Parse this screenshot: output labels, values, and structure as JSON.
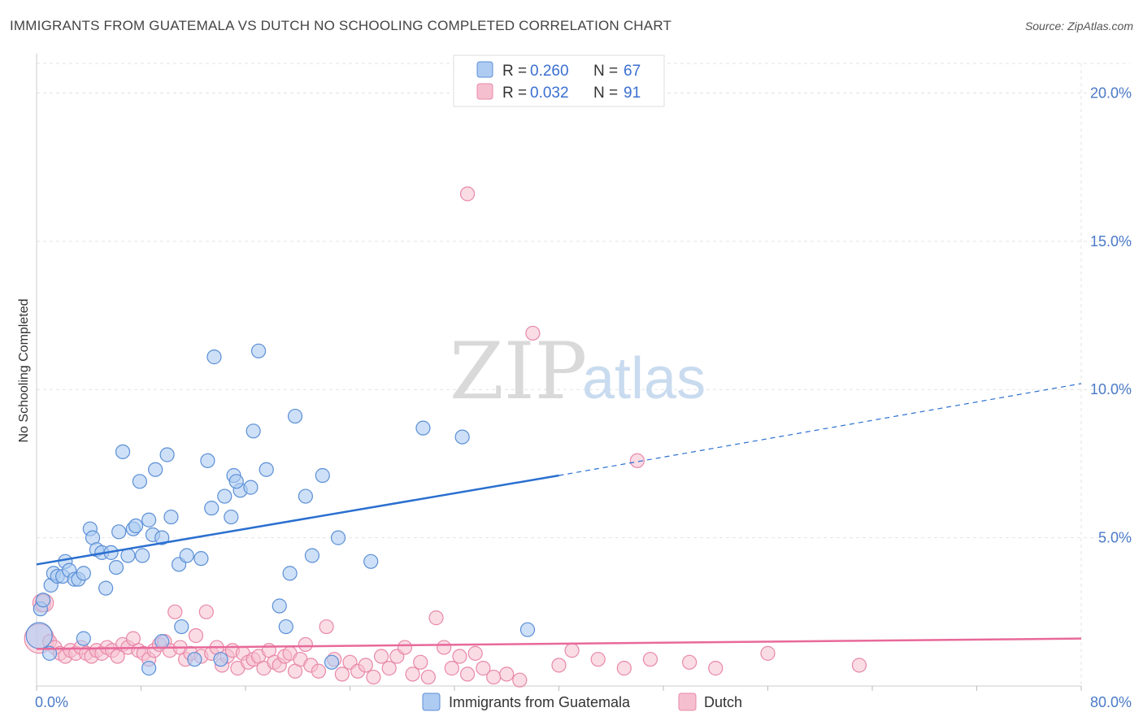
{
  "title": "IMMIGRANTS FROM GUATEMALA VS DUTCH NO SCHOOLING COMPLETED CORRELATION CHART",
  "source": "Source: ZipAtlas.com",
  "watermark": {
    "zip": "ZIP",
    "atlas": "atlas"
  },
  "colors": {
    "blue_fill": "#aecbf2",
    "blue_stroke": "#5b8fd6",
    "blue_line": "#2a6fd0",
    "pink_fill": "#f6bfd0",
    "pink_stroke": "#e888a8",
    "pink_line": "#e8699a",
    "tick_color": "#4a7ac8",
    "grid": "#e3e3e3"
  },
  "legend": {
    "rows": [
      {
        "r_label": "R =",
        "r_value": "0.260",
        "n_label": "N =",
        "n_value": "67"
      },
      {
        "r_label": "R =",
        "r_value": "0.032",
        "n_label": "N =",
        "n_value": "91"
      }
    ]
  },
  "bottom_legend": [
    "Immigrants from Guatemala",
    "Dutch"
  ],
  "chart_data": {
    "type": "scatter",
    "title": "IMMIGRANTS FROM GUATEMALA VS DUTCH NO SCHOOLING COMPLETED CORRELATION CHART",
    "xlabel": "",
    "ylabel": "No Schooling Completed",
    "xlim": [
      0,
      80
    ],
    "ylim": [
      0,
      21
    ],
    "x_tick_labels": [
      "0.0%",
      "80.0%"
    ],
    "y_ticks": [
      5,
      10,
      15,
      20
    ],
    "y_tick_labels": [
      "5.0%",
      "10.0%",
      "15.0%",
      "20.0%"
    ],
    "grid": true,
    "legend_position": "top-center",
    "series": [
      {
        "name": "Immigrants from Guatemala",
        "r": 0.26,
        "n": 67,
        "trend": {
          "x0": 0,
          "y0": 4.1,
          "x1": 40,
          "y1": 7.1,
          "dashed_to": 80,
          "dashed_y": 10.2
        },
        "points": [
          [
            0.3,
            2.6
          ],
          [
            0.5,
            2.9
          ],
          [
            1.1,
            3.4
          ],
          [
            1.3,
            3.8
          ],
          [
            1.6,
            3.7
          ],
          [
            2.0,
            3.7
          ],
          [
            2.2,
            4.2
          ],
          [
            2.5,
            3.9
          ],
          [
            2.9,
            3.6
          ],
          [
            3.2,
            3.6
          ],
          [
            3.6,
            3.8
          ],
          [
            4.1,
            5.3
          ],
          [
            4.3,
            5.0
          ],
          [
            4.6,
            4.6
          ],
          [
            5.0,
            4.5
          ],
          [
            5.3,
            3.3
          ],
          [
            5.7,
            4.5
          ],
          [
            6.1,
            4.0
          ],
          [
            6.3,
            5.2
          ],
          [
            6.6,
            7.9
          ],
          [
            7.0,
            4.4
          ],
          [
            7.4,
            5.3
          ],
          [
            7.6,
            5.4
          ],
          [
            7.9,
            6.9
          ],
          [
            8.1,
            4.4
          ],
          [
            8.6,
            5.6
          ],
          [
            8.9,
            5.1
          ],
          [
            9.1,
            7.3
          ],
          [
            9.6,
            5.0
          ],
          [
            10.0,
            7.8
          ],
          [
            10.3,
            5.7
          ],
          [
            10.9,
            4.1
          ],
          [
            11.1,
            2.0
          ],
          [
            11.5,
            4.4
          ],
          [
            12.6,
            4.3
          ],
          [
            13.1,
            7.6
          ],
          [
            13.4,
            6.0
          ],
          [
            13.6,
            11.1
          ],
          [
            14.4,
            6.4
          ],
          [
            14.9,
            5.7
          ],
          [
            15.1,
            7.1
          ],
          [
            15.6,
            6.6
          ],
          [
            15.3,
            6.9
          ],
          [
            16.4,
            6.7
          ],
          [
            16.6,
            8.6
          ],
          [
            17.0,
            11.3
          ],
          [
            17.6,
            7.3
          ],
          [
            18.6,
            2.7
          ],
          [
            19.1,
            2.0
          ],
          [
            19.4,
            3.8
          ],
          [
            19.8,
            9.1
          ],
          [
            20.6,
            6.4
          ],
          [
            21.1,
            4.4
          ],
          [
            21.9,
            7.1
          ],
          [
            22.6,
            0.8
          ],
          [
            23.1,
            5.0
          ],
          [
            25.6,
            4.2
          ],
          [
            29.6,
            8.7
          ],
          [
            32.6,
            8.4
          ],
          [
            37.6,
            1.9
          ],
          [
            8.6,
            0.6
          ],
          [
            12.1,
            0.9
          ],
          [
            14.1,
            0.9
          ],
          [
            9.6,
            1.5
          ],
          [
            3.6,
            1.6
          ],
          [
            1.0,
            1.1
          ],
          [
            0.2,
            1.7
          ]
        ]
      },
      {
        "name": "Dutch",
        "r": 0.032,
        "n": 91,
        "trend": {
          "x0": 0,
          "y0": 1.25,
          "x1": 80,
          "y1": 1.6
        },
        "points": [
          [
            0.2,
            1.6
          ],
          [
            0.4,
            2.8
          ],
          [
            0.6,
            2.8
          ],
          [
            1.0,
            1.5
          ],
          [
            1.4,
            1.3
          ],
          [
            1.8,
            1.1
          ],
          [
            2.2,
            1.0
          ],
          [
            2.6,
            1.2
          ],
          [
            3.0,
            1.1
          ],
          [
            3.4,
            1.3
          ],
          [
            3.8,
            1.1
          ],
          [
            4.2,
            1.0
          ],
          [
            4.6,
            1.2
          ],
          [
            5.0,
            1.1
          ],
          [
            5.4,
            1.3
          ],
          [
            5.8,
            1.2
          ],
          [
            6.2,
            1.0
          ],
          [
            6.6,
            1.4
          ],
          [
            7.0,
            1.3
          ],
          [
            7.4,
            1.6
          ],
          [
            7.8,
            1.2
          ],
          [
            8.2,
            1.1
          ],
          [
            8.6,
            0.9
          ],
          [
            9.0,
            1.2
          ],
          [
            9.4,
            1.4
          ],
          [
            9.8,
            1.5
          ],
          [
            10.2,
            1.2
          ],
          [
            10.6,
            2.5
          ],
          [
            11.0,
            1.3
          ],
          [
            11.4,
            0.9
          ],
          [
            11.8,
            1.1
          ],
          [
            12.2,
            1.7
          ],
          [
            12.6,
            1.0
          ],
          [
            13.0,
            2.5
          ],
          [
            13.4,
            1.1
          ],
          [
            13.8,
            1.3
          ],
          [
            14.2,
            0.7
          ],
          [
            14.6,
            1.0
          ],
          [
            15.0,
            1.2
          ],
          [
            15.4,
            0.6
          ],
          [
            15.8,
            1.1
          ],
          [
            16.2,
            0.8
          ],
          [
            16.6,
            0.9
          ],
          [
            17.0,
            1.0
          ],
          [
            17.4,
            0.6
          ],
          [
            17.8,
            1.2
          ],
          [
            18.2,
            0.8
          ],
          [
            18.6,
            0.7
          ],
          [
            19.0,
            1.0
          ],
          [
            19.4,
            1.1
          ],
          [
            19.8,
            0.5
          ],
          [
            20.2,
            0.9
          ],
          [
            20.6,
            1.4
          ],
          [
            21.0,
            0.7
          ],
          [
            21.6,
            0.5
          ],
          [
            22.2,
            2.0
          ],
          [
            22.8,
            0.9
          ],
          [
            23.4,
            0.4
          ],
          [
            24.0,
            0.8
          ],
          [
            24.6,
            0.5
          ],
          [
            25.2,
            0.7
          ],
          [
            25.8,
            0.3
          ],
          [
            26.4,
            1.0
          ],
          [
            27.0,
            0.6
          ],
          [
            27.6,
            1.0
          ],
          [
            28.2,
            1.3
          ],
          [
            28.8,
            0.4
          ],
          [
            29.4,
            0.8
          ],
          [
            30.0,
            0.3
          ],
          [
            30.6,
            2.3
          ],
          [
            31.2,
            1.3
          ],
          [
            31.8,
            0.6
          ],
          [
            32.4,
            1.0
          ],
          [
            33.0,
            0.4
          ],
          [
            33.6,
            1.1
          ],
          [
            34.2,
            0.6
          ],
          [
            35.0,
            0.3
          ],
          [
            36.0,
            0.4
          ],
          [
            37.0,
            0.2
          ],
          [
            38.0,
            11.9
          ],
          [
            33.0,
            16.6
          ],
          [
            40.0,
            0.7
          ],
          [
            41.0,
            1.2
          ],
          [
            43.0,
            0.9
          ],
          [
            45.0,
            0.6
          ],
          [
            46.0,
            7.6
          ],
          [
            47.0,
            0.9
          ],
          [
            50.0,
            0.8
          ],
          [
            52.0,
            0.6
          ],
          [
            56.0,
            1.1
          ],
          [
            63.0,
            0.7
          ]
        ]
      }
    ]
  }
}
